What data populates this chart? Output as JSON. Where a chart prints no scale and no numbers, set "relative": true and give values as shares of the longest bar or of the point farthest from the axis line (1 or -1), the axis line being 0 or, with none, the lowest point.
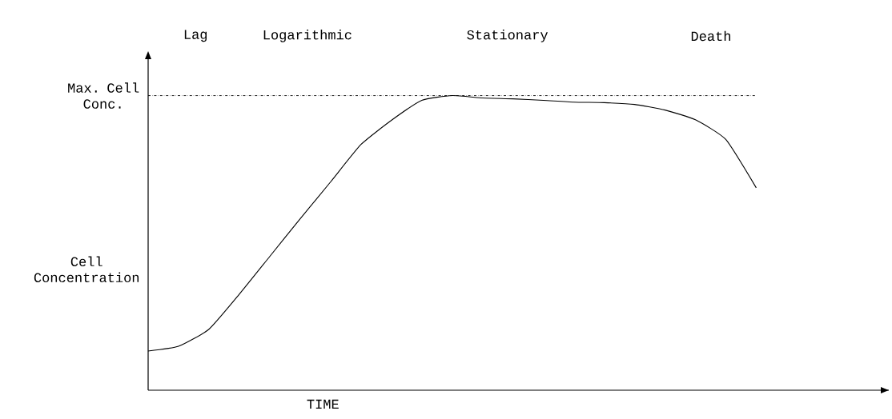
{
  "chart_data": {
    "type": "line",
    "relative": true,
    "xlabel": "TIME",
    "ylabel": "Cell Concentration",
    "categories": [
      null,
      null,
      null,
      null,
      null,
      null,
      null,
      null,
      null,
      null,
      null,
      null,
      null,
      null,
      null,
      null,
      null,
      null,
      null,
      null,
      null
    ],
    "series": [
      {
        "color": "#000000",
        "values": [
          0.133,
          0.149,
          0.207,
          0.326,
          0.454,
          0.582,
          0.707,
          0.834,
          0.916,
          0.984,
          1.0,
          0.992,
          0.989,
          0.984,
          0.978,
          0.976,
          0.97,
          0.951,
          0.918,
          0.851,
          0.687
        ]
      }
    ],
    "ref_lines": [
      {
        "axis": "y",
        "value": 1,
        "label": "Max. Cell Conc.",
        "line_style": "dashdot"
      }
    ],
    "annotations": [
      "Lag",
      "Logarithmic",
      "Stationary",
      "Death"
    ],
    "marker": "none",
    "line_style": "solid"
  }
}
